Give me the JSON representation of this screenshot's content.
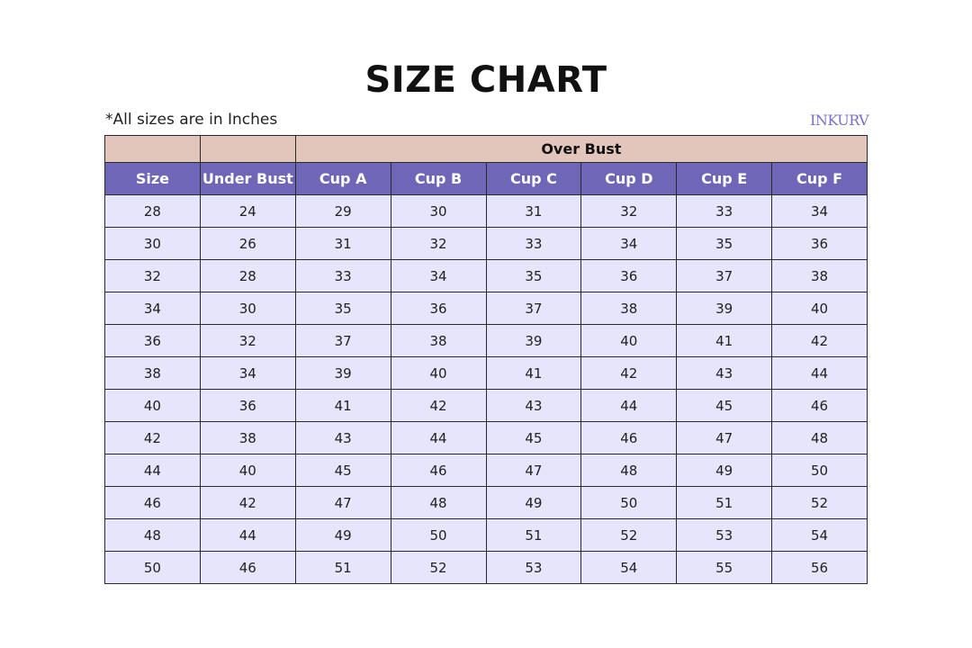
{
  "title": "SIZE CHART",
  "note": "*All sizes are in Inches",
  "brand": "INKURV",
  "colors": {
    "group_header": "#e2c6bb",
    "column_header": "#6f66b8",
    "cell": "#e6e5fb"
  },
  "group_header": "Over Bust",
  "columns": [
    "Size",
    "Under Bust",
    "Cup A",
    "Cup B",
    "Cup C",
    "Cup D",
    "Cup E",
    "Cup F"
  ],
  "rows": [
    [
      28,
      24,
      29,
      30,
      31,
      32,
      33,
      34
    ],
    [
      30,
      26,
      31,
      32,
      33,
      34,
      35,
      36
    ],
    [
      32,
      28,
      33,
      34,
      35,
      36,
      37,
      38
    ],
    [
      34,
      30,
      35,
      36,
      37,
      38,
      39,
      40
    ],
    [
      36,
      32,
      37,
      38,
      39,
      40,
      41,
      42
    ],
    [
      38,
      34,
      39,
      40,
      41,
      42,
      43,
      44
    ],
    [
      40,
      36,
      41,
      42,
      43,
      44,
      45,
      46
    ],
    [
      42,
      38,
      43,
      44,
      45,
      46,
      47,
      48
    ],
    [
      44,
      40,
      45,
      46,
      47,
      48,
      49,
      50
    ],
    [
      46,
      42,
      47,
      48,
      49,
      50,
      51,
      52
    ],
    [
      48,
      44,
      49,
      50,
      51,
      52,
      53,
      54
    ],
    [
      50,
      46,
      51,
      52,
      53,
      54,
      55,
      56
    ]
  ]
}
